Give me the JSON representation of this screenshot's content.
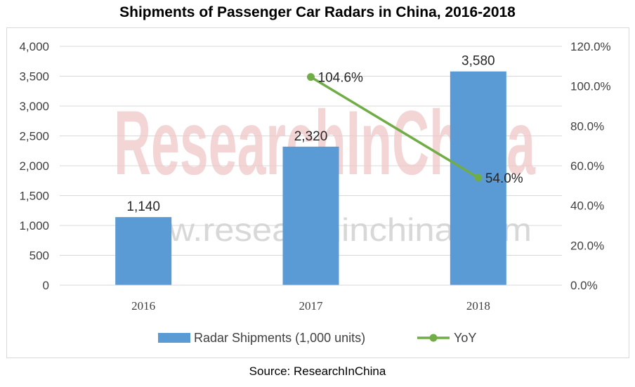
{
  "chart_data": {
    "type": "bar",
    "title": "Shipments of Passenger Car Radars in China, 2016-2018",
    "source": "Source: ResearchInChina",
    "categories": [
      "2016",
      "2017",
      "2018"
    ],
    "series": [
      {
        "name": "Radar Shipments (1,000 units)",
        "type": "bar",
        "axis": "left",
        "color": "#5b9bd5",
        "values": [
          1140,
          2320,
          3580
        ],
        "labels": [
          "1,140",
          "2,320",
          "3,580"
        ]
      },
      {
        "name": "YoY",
        "type": "line",
        "axis": "right",
        "color": "#70ad47",
        "values": [
          null,
          104.6,
          54.0
        ],
        "labels": [
          "",
          "104.6%",
          "54.0%"
        ]
      }
    ],
    "y_left": {
      "ylim": [
        0,
        4000
      ],
      "ticks": [
        "0",
        "500",
        "1,000",
        "1,500",
        "2,000",
        "2,500",
        "3,000",
        "3,500",
        "4,000"
      ]
    },
    "y_right": {
      "ylim": [
        0,
        120
      ],
      "ticks": [
        "0.0%",
        "20.0%",
        "40.0%",
        "60.0%",
        "80.0%",
        "100.0%",
        "120.0%"
      ]
    },
    "grid": true,
    "legend_position": "bottom"
  },
  "watermark": {
    "big": "ResearchInChina",
    "url": "www.researchinchina.com"
  }
}
